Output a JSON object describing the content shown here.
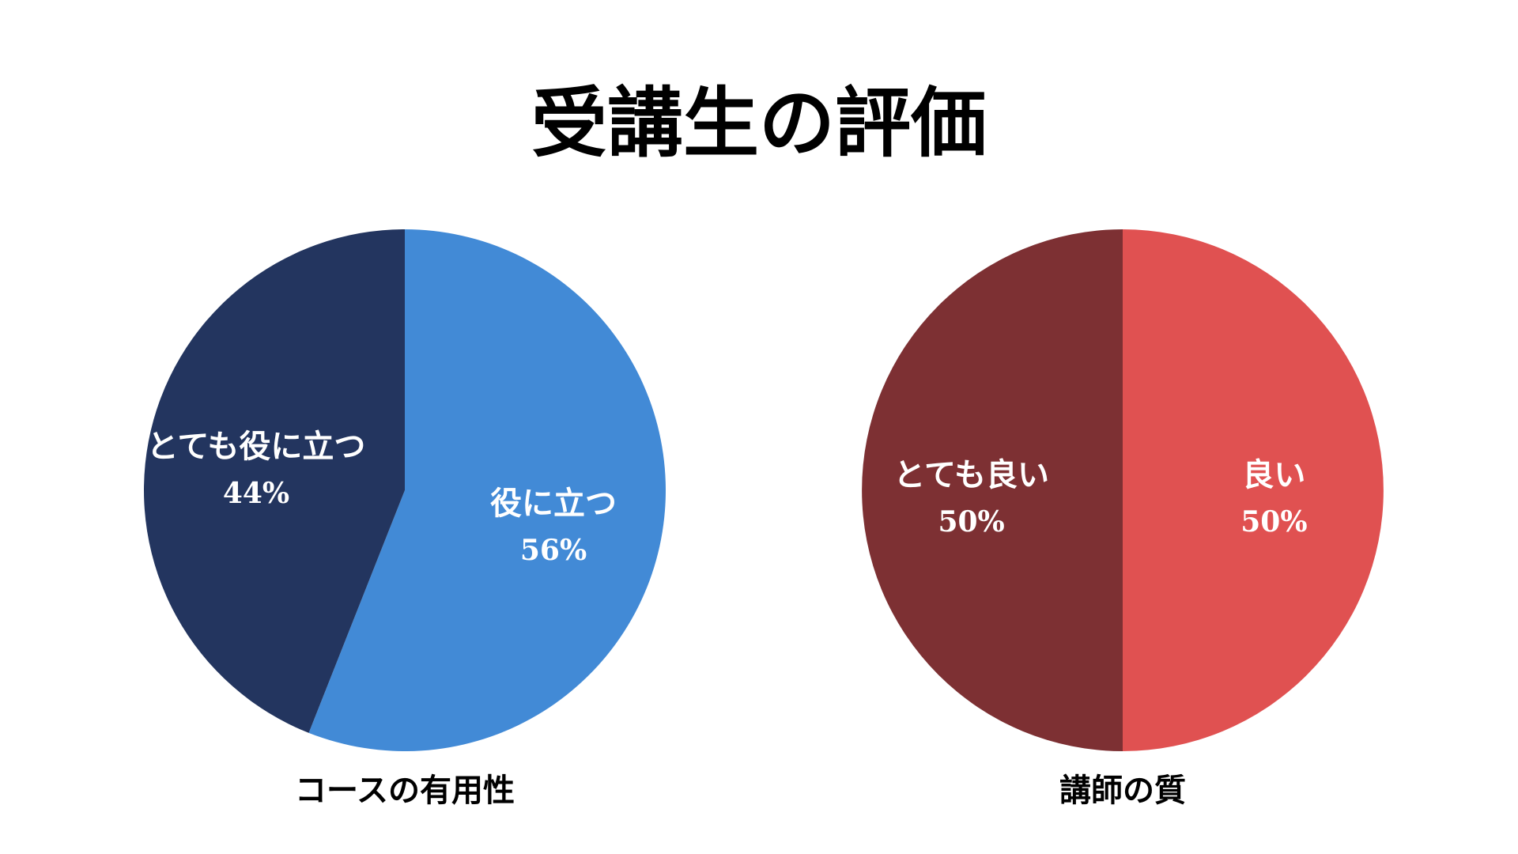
{
  "title": "受講生の評価",
  "chart_data": [
    {
      "type": "pie",
      "caption": "コースの有用性",
      "slices": [
        {
          "name": "役に立つ",
          "value": 56,
          "label": "56%",
          "color": "#428ad6"
        },
        {
          "name": "とても役に立つ",
          "value": 44,
          "label": "44%",
          "color": "#23355f"
        }
      ]
    },
    {
      "type": "pie",
      "caption": "講師の質",
      "slices": [
        {
          "name": "良い",
          "value": 50,
          "label": "50%",
          "color": "#e05151"
        },
        {
          "name": "とても良い",
          "value": 50,
          "label": "50%",
          "color": "#7d3033"
        }
      ]
    }
  ]
}
